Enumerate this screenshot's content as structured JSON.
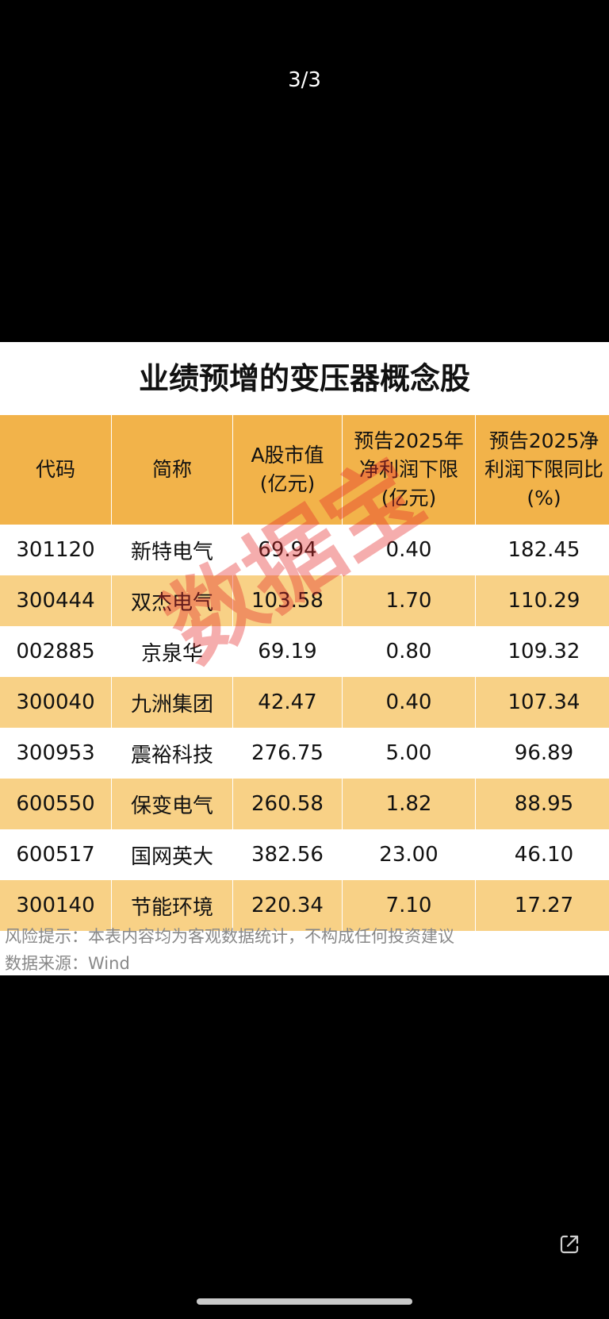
{
  "page_counter": "3/3",
  "table": {
    "title": "业绩预增的变压器概念股",
    "headers": [
      [
        "代码"
      ],
      [
        "简称"
      ],
      [
        "A股市值",
        "(亿元)"
      ],
      [
        "预告2025年",
        "净利润下限",
        "(亿元)"
      ],
      [
        "预告2025净",
        "利润下限同比",
        "(%)"
      ]
    ],
    "rows": [
      [
        "301120",
        "新特电气",
        "69.94",
        "0.40",
        "182.45"
      ],
      [
        "300444",
        "双杰电气",
        "103.58",
        "1.70",
        "110.29"
      ],
      [
        "002885",
        "京泉华",
        "69.19",
        "0.80",
        "109.32"
      ],
      [
        "300040",
        "九洲集团",
        "42.47",
        "0.40",
        "107.34"
      ],
      [
        "300953",
        "震裕科技",
        "276.75",
        "5.00",
        "96.89"
      ],
      [
        "600550",
        "保变电气",
        "260.58",
        "1.82",
        "88.95"
      ],
      [
        "600517",
        "国网英大",
        "382.56",
        "23.00",
        "46.10"
      ],
      [
        "300140",
        "节能环境",
        "220.34",
        "7.10",
        "17.27"
      ]
    ],
    "risk_note": "风险提示：本表内容均为客观数据统计，不构成任何投资建议",
    "source_note": "数据来源：Wind",
    "watermark": "数据宝"
  },
  "icons": {
    "share": "share-icon"
  },
  "colors": {
    "header_bg": "#f2b34a",
    "stripe_bg": "#f8d186",
    "watermark": "#e52a2a"
  }
}
